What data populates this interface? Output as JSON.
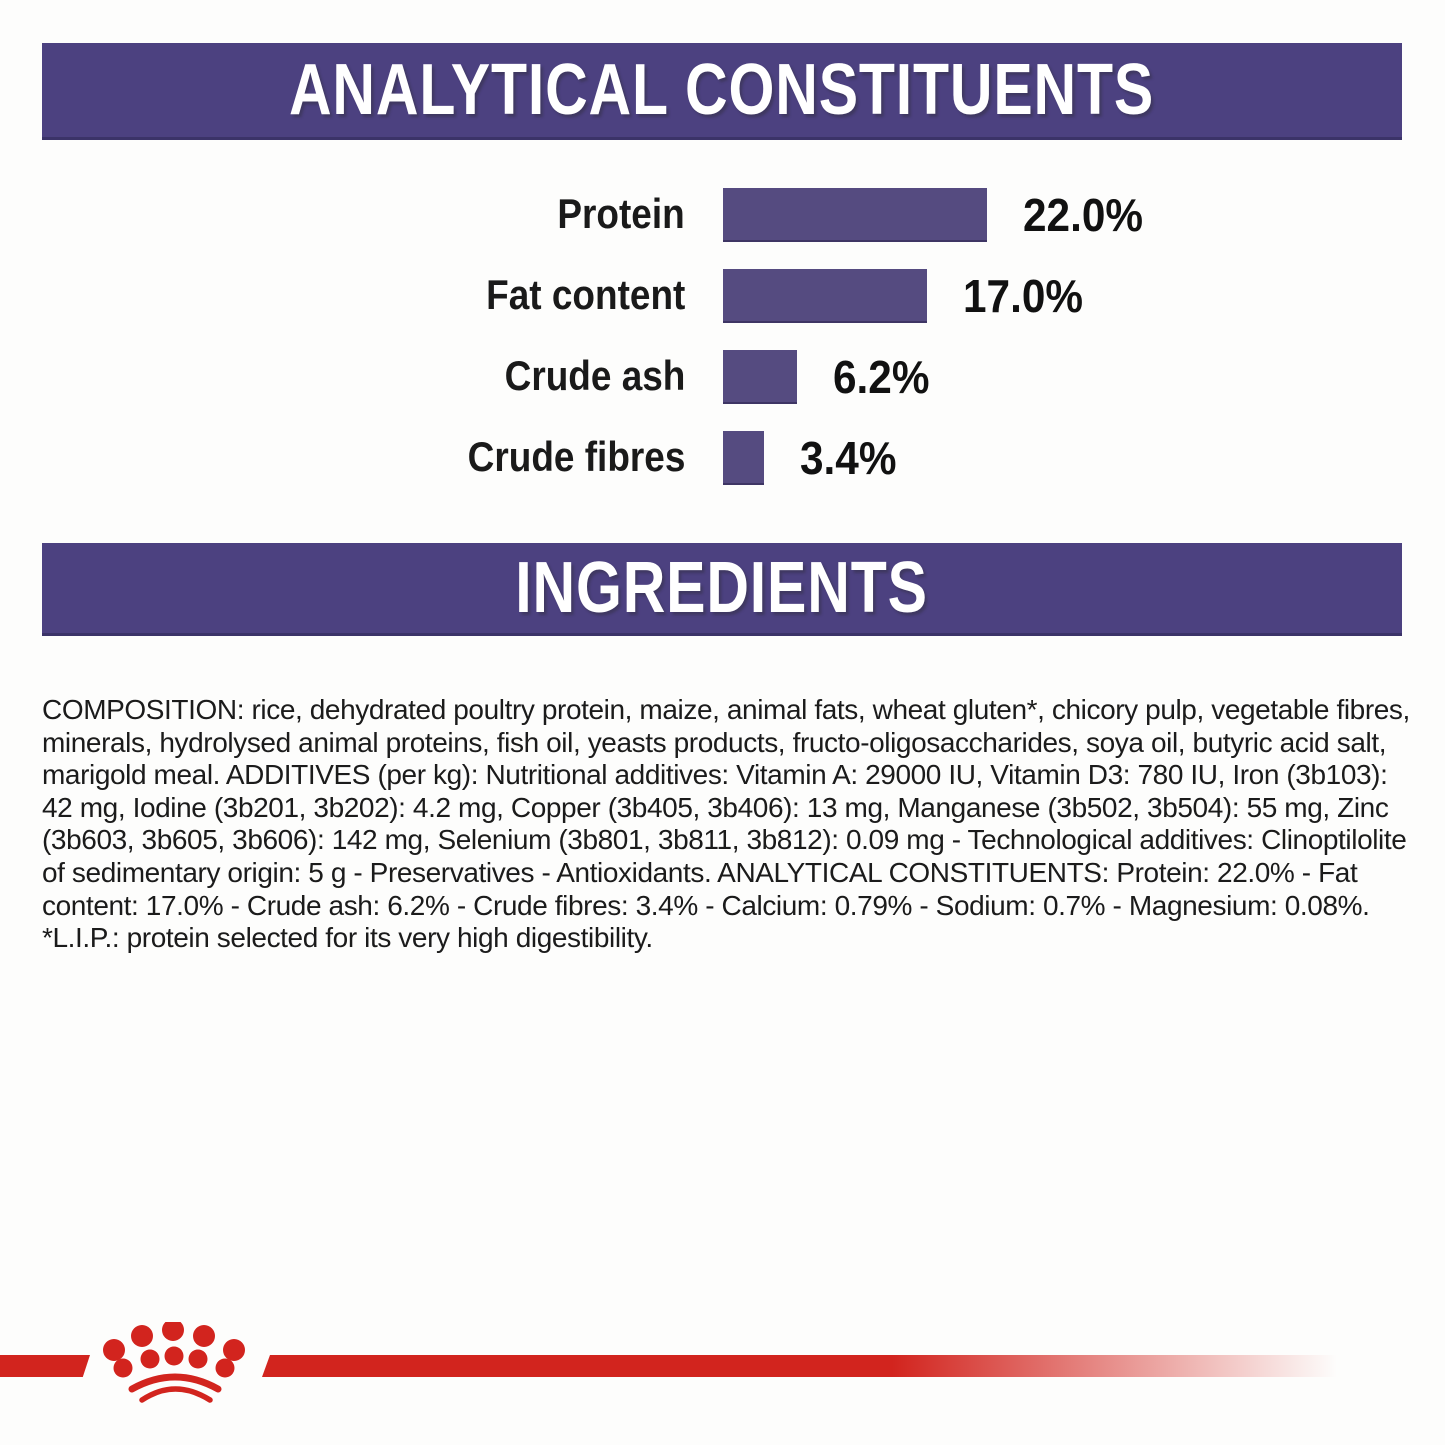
{
  "sections": {
    "analytical": {
      "title": "ANALYTICAL CONSTITUENTS"
    },
    "ingredients": {
      "title": "INGREDIENTS"
    }
  },
  "chart_data": {
    "type": "bar",
    "orientation": "horizontal",
    "title": "ANALYTICAL CONSTITUENTS",
    "categories": [
      "Protein",
      "Fat content",
      "Crude ash",
      "Crude fibres"
    ],
    "values": [
      22.0,
      17.0,
      6.2,
      3.4
    ],
    "value_labels": [
      "22.0%",
      "17.0%",
      "6.2%",
      "3.4%"
    ],
    "xlim": [
      0,
      22
    ],
    "grid": false,
    "legend": false,
    "bar_color": "#554b80",
    "label_color": "#1a1a1a"
  },
  "composition": {
    "text": "COMPOSITION: rice, dehydrated poultry protein, maize, animal fats, wheat gluten*, chicory pulp, vegetable fibres, minerals, hydrolysed animal proteins, fish oil, yeasts products, fructo-oligosaccharides, soya oil, butyric acid salt, marigold meal. ADDITIVES (per kg): Nutritional additives: Vitamin A: 29000 IU, Vitamin D3: 780 IU, Iron (3b103): 42 mg, Iodine (3b201, 3b202): 4.2 mg, Copper (3b405, 3b406): 13 mg, Manganese (3b502, 3b504): 55 mg, Zinc (3b603, 3b605, 3b606): 142 mg, Selenium (3b801, 3b811, 3b812): 0.09 mg - Technological additives: Clinoptilolite of sedimentary origin: 5 g - Preservatives - Antioxidants. ANALYTICAL CONSTITUENTS: Protein: 22.0% - Fat content: 17.0% - Crude ash: 6.2% - Crude fibres: 3.4% - Calcium: 0.79% - Sodium: 0.7% - Magnesium: 0.08%. *L.I.P.: protein selected for its very high digestibility."
  },
  "footer": {
    "logo": "royal-canin-crown"
  },
  "colors": {
    "banner_purple": "#4c4180",
    "bar_purple": "#554b80",
    "brand_red": "#d2241e",
    "text_black": "#1b1b1b"
  }
}
